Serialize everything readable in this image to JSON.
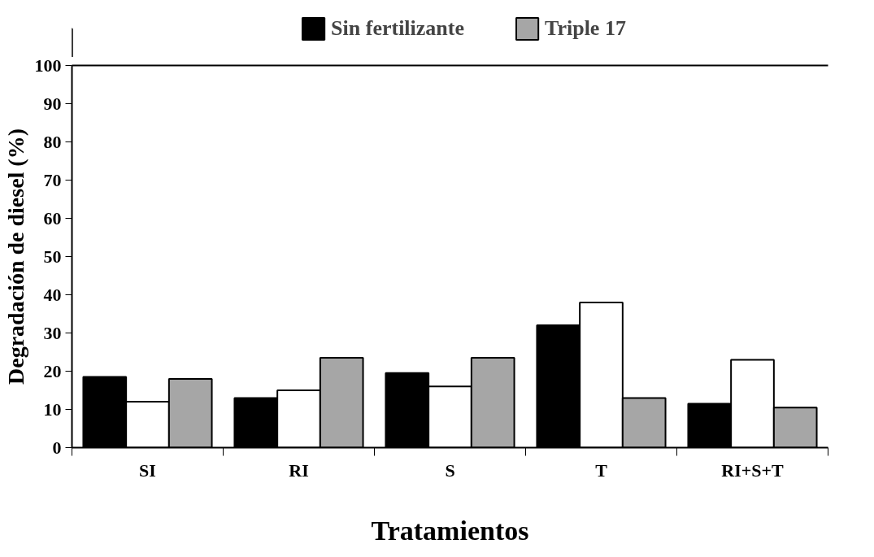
{
  "chart_data": {
    "type": "bar",
    "xlabel": "Tratamientos",
    "ylabel": "Degradación de diesel (%)",
    "categories": [
      "SI",
      "RI",
      "S",
      "T",
      "RI+S+T"
    ],
    "series": [
      {
        "name": "Sin fertilizante",
        "color": "#000000",
        "values": [
          18.5,
          13,
          19.5,
          32,
          11.5
        ]
      },
      {
        "color": "#ffffff",
        "values": [
          12,
          15,
          16,
          38,
          23
        ]
      },
      {
        "name": "Triple 17",
        "color": "#a6a6a6",
        "values": [
          18,
          23.5,
          23.5,
          13,
          10.5
        ]
      }
    ],
    "ylim": [
      0,
      100
    ],
    "yticks": [
      0,
      10,
      20,
      30,
      40,
      50,
      60,
      70,
      80,
      90,
      100
    ],
    "grid": false,
    "legend": "top"
  }
}
